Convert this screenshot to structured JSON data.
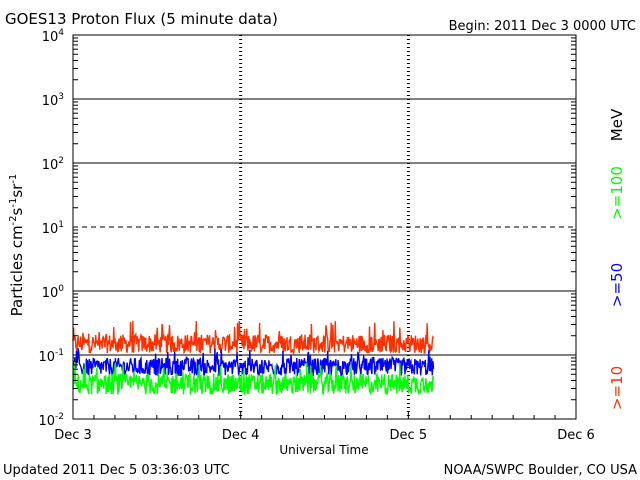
{
  "chart_data": {
    "type": "line",
    "title": "GOES13 Proton Flux (5 minute data)",
    "begin_label": "Begin: 2011 Dec 3 0000 UTC",
    "xlabel": "Universal Time",
    "ylabel": "Particles cm",
    "ylabel_parts": [
      {
        "text": "Particles cm",
        "sup": false
      },
      {
        "text": "-2",
        "sup": true
      },
      {
        "text": "s",
        "sup": false
      },
      {
        "text": "-1",
        "sup": true
      },
      {
        "text": "sr",
        "sup": false
      },
      {
        "text": "-1",
        "sup": true
      }
    ],
    "yscale": "log",
    "ylim": [
      0.01,
      10000
    ],
    "xlim_days": [
      0,
      3
    ],
    "x_ticks": [
      "Dec 3",
      "Dec 4",
      "Dec 5",
      "Dec 6"
    ],
    "y_ticks": [
      {
        "base": "10",
        "exp": "-2"
      },
      {
        "base": "10",
        "exp": "-1"
      },
      {
        "base": "10",
        "exp": "0"
      },
      {
        "base": "10",
        "exp": "1"
      },
      {
        "base": "10",
        "exp": "2"
      },
      {
        "base": "10",
        "exp": "3"
      },
      {
        "base": "10",
        "exp": "4"
      }
    ],
    "data_end_day": 2.15,
    "series": [
      {
        "name": ">=10",
        "color": "#ff3000",
        "typical": 0.15,
        "min": 0.1,
        "max": 0.35
      },
      {
        "name": ">=50",
        "color": "#0000ff",
        "typical": 0.065,
        "min": 0.04,
        "max": 0.13
      },
      {
        "name": ">=100",
        "color": "#00ff00",
        "typical": 0.035,
        "min": 0.02,
        "max": 0.08
      }
    ],
    "legend_unit": "MeV",
    "legend_unit_color": "#000000",
    "threshold_line": {
      "value": 10,
      "style": "dashed"
    },
    "updated_label": "Updated 2011 Dec  5 03:36:03 UTC",
    "source_label": "NOAA/SWPC Boulder, CO USA"
  }
}
